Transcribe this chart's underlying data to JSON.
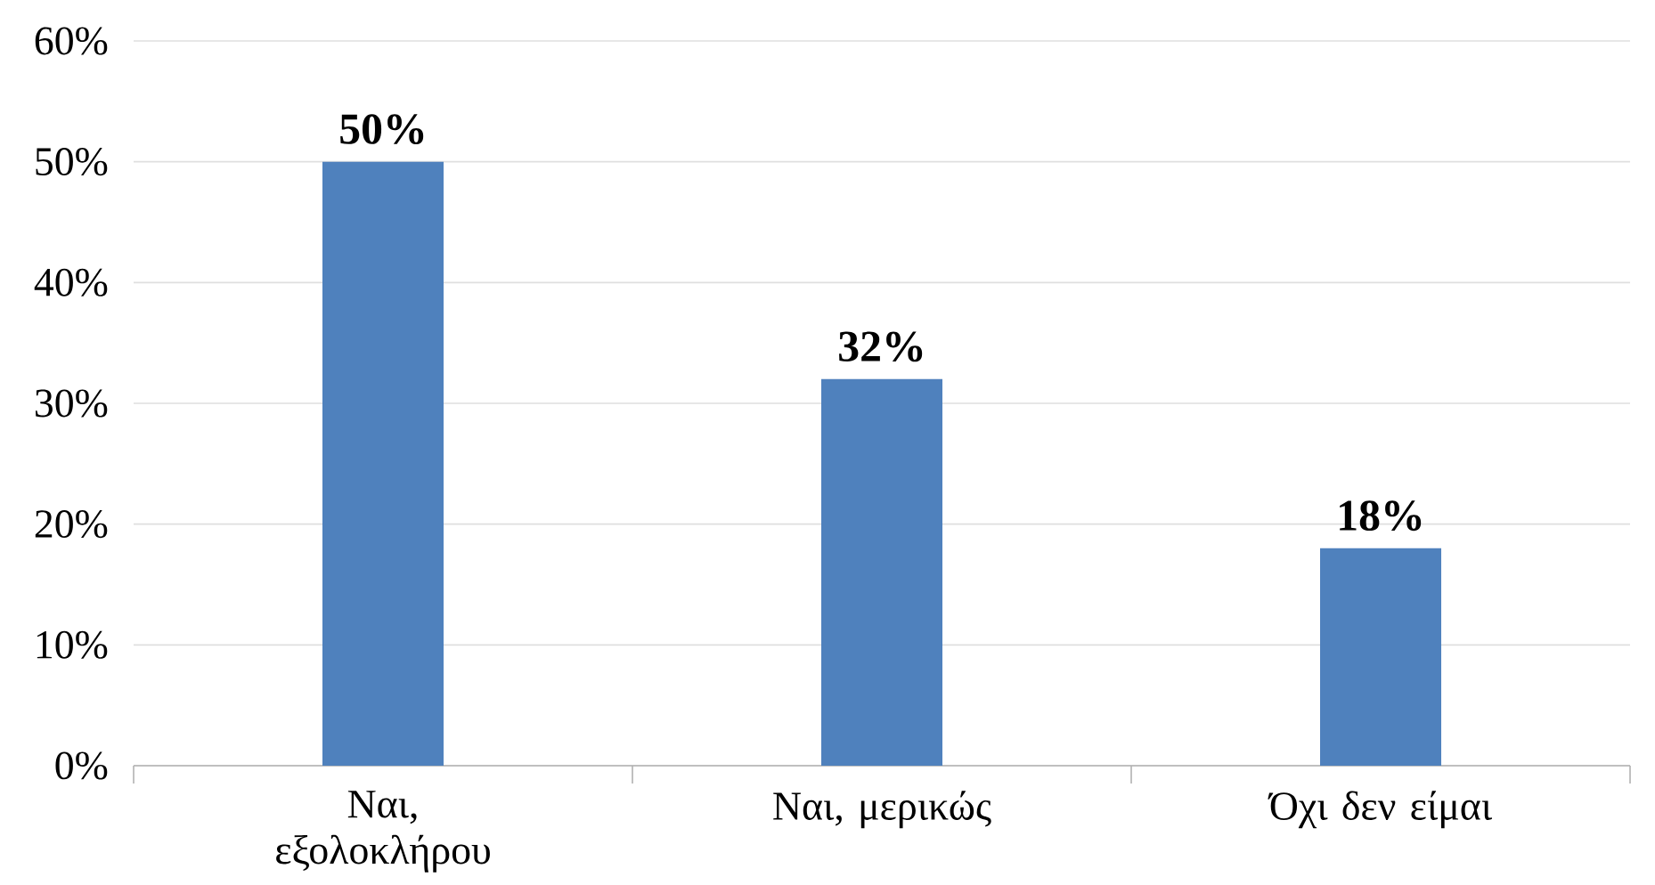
{
  "chart_data": {
    "type": "bar",
    "categories": [
      "Ναι, εξολοκλήρου",
      "Ναι, μερικώς",
      "Όχι δεν είμαι"
    ],
    "values": [
      50,
      32,
      18
    ],
    "value_labels": [
      "50%",
      "32%",
      "18%"
    ],
    "color": "#4f81bd",
    "ylim": [
      0,
      60
    ],
    "yticks": [
      {
        "value": 0,
        "label": "0%"
      },
      {
        "value": 10,
        "label": "10%"
      },
      {
        "value": 20,
        "label": "20%"
      },
      {
        "value": 30,
        "label": "30%"
      },
      {
        "value": 40,
        "label": "40%"
      },
      {
        "value": 50,
        "label": "50%"
      },
      {
        "value": 60,
        "label": "60%"
      }
    ],
    "grid": "y"
  }
}
